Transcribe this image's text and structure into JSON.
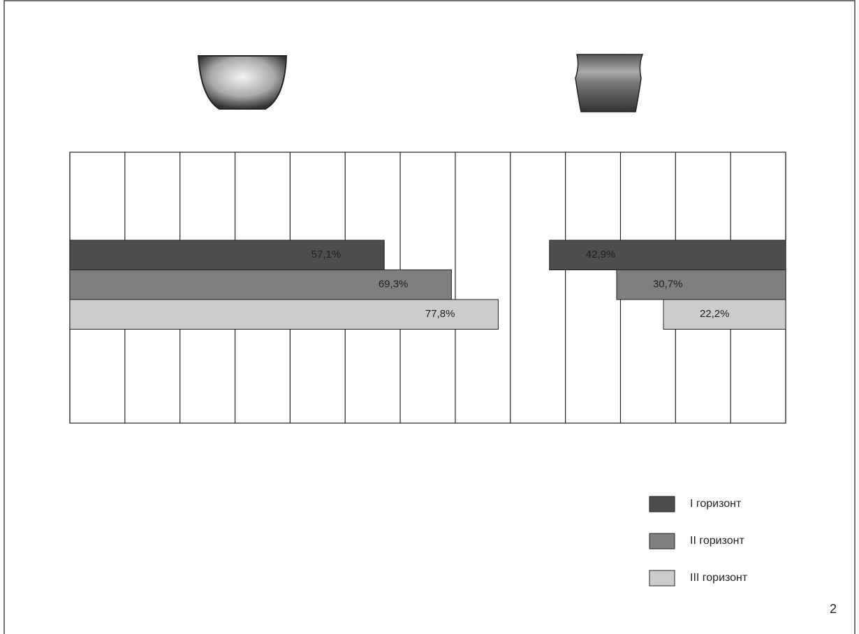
{
  "chart_data": {
    "type": "diverging-bar",
    "categories": [
      null,
      null
    ],
    "series": [
      {
        "name": "I горизонт",
        "color": "#4d4d4d",
        "values": [
          57.1,
          42.9
        ],
        "value_labels": [
          "57,1%",
          "42,9%"
        ]
      },
      {
        "name": "II горизонт",
        "color": "#7f7f7f",
        "values": [
          69.3,
          30.7
        ],
        "value_labels": [
          "69,3%",
          "30,7%"
        ]
      },
      {
        "name": "III горизонт",
        "color": "#cccccc",
        "values": [
          77.8,
          22.2
        ],
        "value_labels": [
          "77,8%",
          "22,2%"
        ]
      }
    ],
    "xlim": [
      0,
      130
    ],
    "xticks": [
      0,
      10,
      20,
      30,
      40,
      50,
      60,
      70,
      80,
      90,
      100,
      110,
      120,
      130
    ],
    "grid": true
  },
  "page_number": "2"
}
